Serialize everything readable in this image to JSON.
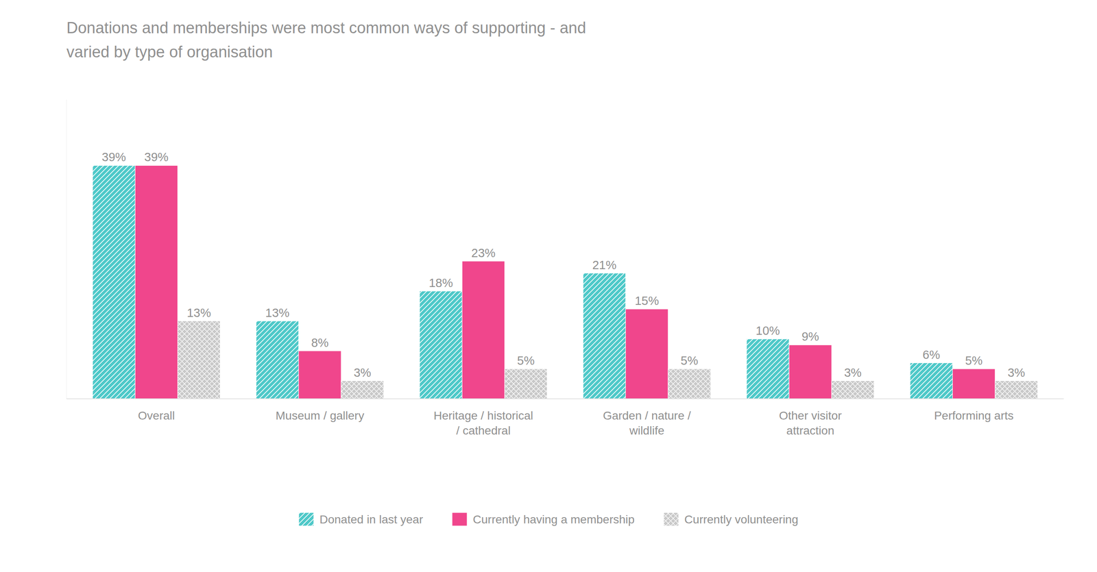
{
  "chart_data": {
    "type": "bar",
    "title": "Donations and memberships were most common ways of supporting - and\nvaried by type of organisation",
    "categories": [
      "Overall",
      "Museum / gallery",
      "Heritage / historical\n/ cathedral",
      "Garden / nature /\nwildlife",
      "Other visitor\nattraction",
      "Performing arts"
    ],
    "series": [
      {
        "name": "Donated in last year",
        "color": "#4DC8C8",
        "values": [
          39,
          13,
          18,
          21,
          10,
          6
        ],
        "value_labels": [
          "39%",
          "13%",
          "18%",
          "21%",
          "10%",
          "6%"
        ]
      },
      {
        "name": "Currently having a membership",
        "color": "#F0468C",
        "values": [
          39,
          8,
          23,
          15,
          9,
          5
        ],
        "value_labels": [
          "39%",
          "8%",
          "23%",
          "15%",
          "9%",
          "5%"
        ]
      },
      {
        "name": "Currently volunteering",
        "color": "#C8C8C8",
        "values": [
          13,
          3,
          5,
          5,
          3,
          3
        ],
        "value_labels": [
          "13%",
          "3%",
          "5%",
          "5%",
          "3%",
          "3%"
        ]
      }
    ],
    "ylim": [
      0,
      50
    ],
    "yticks": [],
    "grid": false,
    "legend": "bottom",
    "data_labels": true,
    "tick_labels": "x"
  }
}
